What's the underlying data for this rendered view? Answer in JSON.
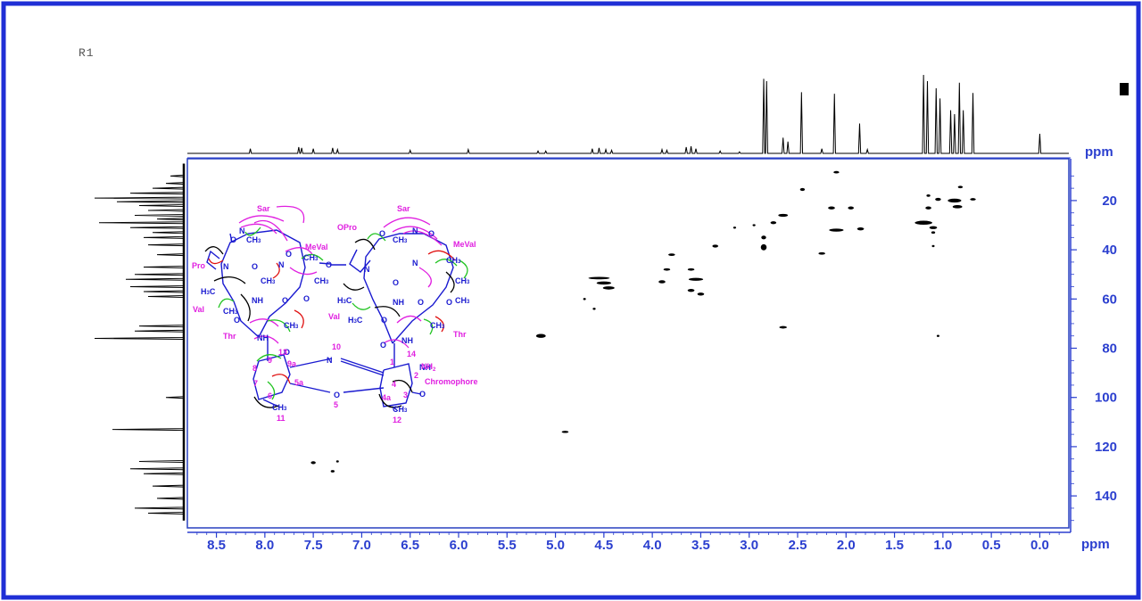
{
  "sample_label": "R1",
  "colors": {
    "frame": "#1f2fd6",
    "axis": "#2b3fcf",
    "plot_border": "#2840c0",
    "contour": "#000000",
    "spectrum": "#000000",
    "structure_bonds": "#1a1ad0",
    "hmbc_magenta": "#e020e0",
    "hmbc_green": "#22c422",
    "hmbc_red": "#e01010",
    "hmbc_black": "#000000"
  },
  "chart_data": {
    "type": "heatmap",
    "title": "",
    "xlabel": "ppm",
    "ylabel": "ppm",
    "xlim": [
      8.8,
      -0.3
    ],
    "ylim": [
      3,
      153
    ],
    "x_reversed": true,
    "x_ticks": [
      8.5,
      8.0,
      7.5,
      7.0,
      6.5,
      6.0,
      5.5,
      5.0,
      4.5,
      4.0,
      3.5,
      3.0,
      2.5,
      2.0,
      1.5,
      1.0,
      0.5,
      0.0
    ],
    "x_tick_labels": [
      "8.5",
      "8.0",
      "7.5",
      "7.0",
      "6.5",
      "6.0",
      "5.5",
      "5.0",
      "4.5",
      "4.0",
      "3.5",
      "3.0",
      "2.5",
      "2.0",
      "1.5",
      "1.0",
      "0.5",
      "0.0"
    ],
    "y_ticks": [
      20,
      40,
      60,
      80,
      100,
      120,
      140
    ],
    "y_tick_labels": [
      "20",
      "40",
      "60",
      "80",
      "100",
      "120",
      "140"
    ],
    "f2_projection_peaks": [
      {
        "ppm": 8.15,
        "h": 0.06
      },
      {
        "ppm": 7.65,
        "h": 0.08
      },
      {
        "ppm": 7.62,
        "h": 0.07
      },
      {
        "ppm": 7.5,
        "h": 0.06
      },
      {
        "ppm": 7.3,
        "h": 0.07
      },
      {
        "ppm": 7.25,
        "h": 0.05
      },
      {
        "ppm": 6.5,
        "h": 0.04
      },
      {
        "ppm": 5.9,
        "h": 0.05
      },
      {
        "ppm": 5.18,
        "h": 0.03
      },
      {
        "ppm": 5.1,
        "h": 0.03
      },
      {
        "ppm": 4.62,
        "h": 0.06
      },
      {
        "ppm": 4.55,
        "h": 0.07
      },
      {
        "ppm": 4.48,
        "h": 0.05
      },
      {
        "ppm": 4.42,
        "h": 0.04
      },
      {
        "ppm": 3.9,
        "h": 0.05
      },
      {
        "ppm": 3.85,
        "h": 0.04
      },
      {
        "ppm": 3.65,
        "h": 0.08
      },
      {
        "ppm": 3.6,
        "h": 0.09
      },
      {
        "ppm": 3.55,
        "h": 0.06
      },
      {
        "ppm": 3.3,
        "h": 0.03
      },
      {
        "ppm": 3.1,
        "h": 0.02
      },
      {
        "ppm": 2.85,
        "h": 0.95
      },
      {
        "ppm": 2.82,
        "h": 0.92
      },
      {
        "ppm": 2.65,
        "h": 0.2
      },
      {
        "ppm": 2.6,
        "h": 0.15
      },
      {
        "ppm": 2.46,
        "h": 0.78
      },
      {
        "ppm": 2.25,
        "h": 0.06
      },
      {
        "ppm": 2.12,
        "h": 0.76
      },
      {
        "ppm": 1.86,
        "h": 0.38
      },
      {
        "ppm": 1.78,
        "h": 0.05
      },
      {
        "ppm": 1.2,
        "h": 1.0
      },
      {
        "ppm": 1.16,
        "h": 0.92
      },
      {
        "ppm": 1.07,
        "h": 0.83
      },
      {
        "ppm": 1.03,
        "h": 0.7
      },
      {
        "ppm": 0.92,
        "h": 0.55
      },
      {
        "ppm": 0.88,
        "h": 0.5
      },
      {
        "ppm": 0.83,
        "h": 0.9
      },
      {
        "ppm": 0.79,
        "h": 0.55
      },
      {
        "ppm": 0.69,
        "h": 0.77
      },
      {
        "ppm": 0.0,
        "h": 0.25
      }
    ],
    "f1_projection_peaks": [
      {
        "ppm": 10,
        "h": 0.15
      },
      {
        "ppm": 13,
        "h": 0.2
      },
      {
        "ppm": 15,
        "h": 0.35
      },
      {
        "ppm": 17,
        "h": 0.6
      },
      {
        "ppm": 19,
        "h": 1.0
      },
      {
        "ppm": 20.5,
        "h": 0.75
      },
      {
        "ppm": 22,
        "h": 0.5
      },
      {
        "ppm": 24,
        "h": 0.4
      },
      {
        "ppm": 26,
        "h": 0.55
      },
      {
        "ppm": 27.5,
        "h": 0.3
      },
      {
        "ppm": 29,
        "h": 0.95
      },
      {
        "ppm": 31,
        "h": 0.6
      },
      {
        "ppm": 33,
        "h": 0.35
      },
      {
        "ppm": 35,
        "h": 0.45
      },
      {
        "ppm": 38,
        "h": 0.4
      },
      {
        "ppm": 42,
        "h": 0.3
      },
      {
        "ppm": 47,
        "h": 0.45
      },
      {
        "ppm": 50,
        "h": 0.55
      },
      {
        "ppm": 52,
        "h": 0.65
      },
      {
        "ppm": 55,
        "h": 0.6
      },
      {
        "ppm": 57,
        "h": 0.45
      },
      {
        "ppm": 59,
        "h": 0.4
      },
      {
        "ppm": 71,
        "h": 0.5
      },
      {
        "ppm": 73,
        "h": 0.55
      },
      {
        "ppm": 76,
        "h": 1.0
      },
      {
        "ppm": 100,
        "h": 0.2
      },
      {
        "ppm": 113,
        "h": 0.8
      },
      {
        "ppm": 126,
        "h": 0.5
      },
      {
        "ppm": 129,
        "h": 0.6
      },
      {
        "ppm": 131,
        "h": 0.45
      },
      {
        "ppm": 136,
        "h": 0.35
      },
      {
        "ppm": 141,
        "h": 0.3
      },
      {
        "ppm": 145,
        "h": 0.55
      },
      {
        "ppm": 147,
        "h": 0.4
      }
    ],
    "cross_peaks": [
      {
        "x": 2.1,
        "y": 8.5,
        "w": 0.06,
        "h": 1
      },
      {
        "x": 2.45,
        "y": 15.5,
        "w": 0.05,
        "h": 1.2
      },
      {
        "x": 2.15,
        "y": 23,
        "w": 0.07,
        "h": 1.2
      },
      {
        "x": 1.95,
        "y": 23,
        "w": 0.06,
        "h": 1.2
      },
      {
        "x": 2.65,
        "y": 26,
        "w": 0.1,
        "h": 1.2
      },
      {
        "x": 2.75,
        "y": 29,
        "w": 0.06,
        "h": 1.2
      },
      {
        "x": 2.1,
        "y": 32,
        "w": 0.15,
        "h": 1.2
      },
      {
        "x": 1.85,
        "y": 31.5,
        "w": 0.07,
        "h": 1.2
      },
      {
        "x": 2.85,
        "y": 35,
        "w": 0.05,
        "h": 1.5
      },
      {
        "x": 2.85,
        "y": 39,
        "w": 0.06,
        "h": 2.5
      },
      {
        "x": 3.35,
        "y": 38.5,
        "w": 0.06,
        "h": 1.2
      },
      {
        "x": 3.15,
        "y": 31,
        "w": 0.03,
        "h": 0.8
      },
      {
        "x": 2.95,
        "y": 30,
        "w": 0.03,
        "h": 0.8
      },
      {
        "x": 2.25,
        "y": 41.5,
        "w": 0.07,
        "h": 1
      },
      {
        "x": 3.8,
        "y": 42,
        "w": 0.07,
        "h": 1
      },
      {
        "x": 3.85,
        "y": 48,
        "w": 0.07,
        "h": 1
      },
      {
        "x": 3.6,
        "y": 48,
        "w": 0.07,
        "h": 1
      },
      {
        "x": 3.9,
        "y": 53,
        "w": 0.07,
        "h": 1.3
      },
      {
        "x": 3.55,
        "y": 52,
        "w": 0.15,
        "h": 1.2
      },
      {
        "x": 3.6,
        "y": 56.5,
        "w": 0.07,
        "h": 1.2
      },
      {
        "x": 3.5,
        "y": 58,
        "w": 0.07,
        "h": 1.2
      },
      {
        "x": 4.55,
        "y": 51.5,
        "w": 0.22,
        "h": 1
      },
      {
        "x": 4.5,
        "y": 53.5,
        "w": 0.15,
        "h": 1.3
      },
      {
        "x": 4.45,
        "y": 55.5,
        "w": 0.12,
        "h": 1.3
      },
      {
        "x": 4.7,
        "y": 60,
        "w": 0.02,
        "h": 0.8
      },
      {
        "x": 4.6,
        "y": 64,
        "w": 0.03,
        "h": 0.8
      },
      {
        "x": 5.15,
        "y": 75,
        "w": 0.1,
        "h": 1.6
      },
      {
        "x": 4.9,
        "y": 114,
        "w": 0.07,
        "h": 0.8
      },
      {
        "x": 2.65,
        "y": 71.5,
        "w": 0.08,
        "h": 1
      },
      {
        "x": 1.05,
        "y": 75,
        "w": 0.02,
        "h": 0.6
      },
      {
        "x": 7.5,
        "y": 126.5,
        "w": 0.05,
        "h": 1.2
      },
      {
        "x": 7.3,
        "y": 130,
        "w": 0.04,
        "h": 1
      },
      {
        "x": 7.25,
        "y": 126,
        "w": 0.01,
        "h": 0.6
      },
      {
        "x": 1.2,
        "y": 29,
        "w": 0.18,
        "h": 1.6
      },
      {
        "x": 1.1,
        "y": 31,
        "w": 0.08,
        "h": 1.2
      },
      {
        "x": 1.15,
        "y": 23,
        "w": 0.06,
        "h": 1.2
      },
      {
        "x": 1.15,
        "y": 18,
        "w": 0.04,
        "h": 1
      },
      {
        "x": 1.1,
        "y": 33,
        "w": 0.04,
        "h": 1
      },
      {
        "x": 1.05,
        "y": 19.5,
        "w": 0.06,
        "h": 1.2
      },
      {
        "x": 0.88,
        "y": 20,
        "w": 0.14,
        "h": 1.6
      },
      {
        "x": 0.85,
        "y": 22.5,
        "w": 0.1,
        "h": 1.3
      },
      {
        "x": 0.82,
        "y": 14.5,
        "w": 0.05,
        "h": 1
      },
      {
        "x": 0.69,
        "y": 19.5,
        "w": 0.06,
        "h": 1
      },
      {
        "x": 1.1,
        "y": 38.5,
        "w": 0.02,
        "h": 0.6
      }
    ]
  },
  "structure": {
    "labels": {
      "sar_left": "Sar",
      "sar_right": "Sar",
      "meval_left": "MeVal",
      "meval_right": "MeVal",
      "opro": "OPro",
      "pro": "Pro",
      "val_left": "Val",
      "val_right": "Val",
      "thr_left": "Thr",
      "thr_right": "Thr",
      "chromophore": "Chromophore",
      "nh2": "NH",
      "n10": "10",
      "o5": "5",
      "n1": "1",
      "n2": "2",
      "n3": "3",
      "n4": "4",
      "n4a": "4a",
      "n5a": "5a",
      "n6": "6",
      "n7": "7",
      "n8": "8",
      "n9": "9",
      "n9a": "9a",
      "n11": "11",
      "n12": "12",
      "n13": "13",
      "n14": "14"
    }
  }
}
